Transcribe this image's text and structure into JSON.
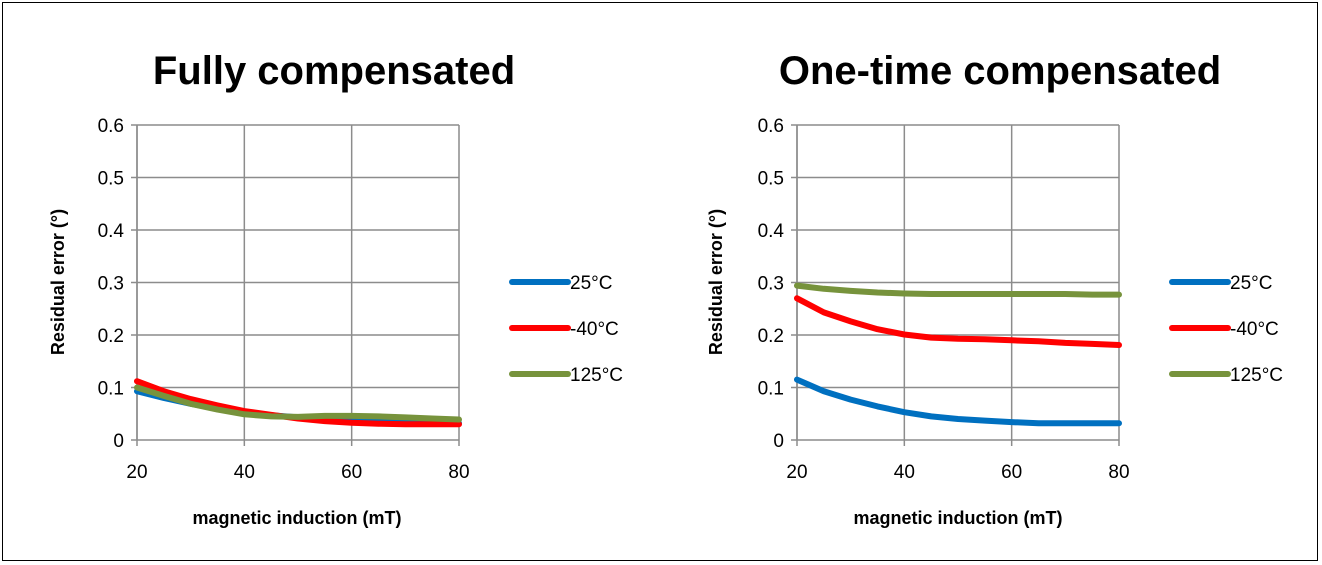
{
  "chart_data": [
    {
      "type": "line",
      "title": "Fully compensated",
      "xlabel": "magnetic induction (mT)",
      "ylabel": "Residual error (°)",
      "xlim": [
        20,
        80
      ],
      "ylim": [
        0,
        0.6
      ],
      "xticks": [
        20,
        40,
        60,
        80
      ],
      "yticks": [
        0,
        0.1,
        0.2,
        0.3,
        0.4,
        0.5,
        0.6
      ],
      "grid": true,
      "legend": "right",
      "series": [
        {
          "name": "25°C",
          "color": "#0070C0",
          "x": [
            20,
            25,
            30,
            35,
            40,
            45,
            50,
            55,
            60,
            65,
            70,
            75,
            80
          ],
          "y": [
            0.093,
            0.08,
            0.069,
            0.06,
            0.053,
            0.047,
            0.043,
            0.04,
            0.037,
            0.035,
            0.034,
            0.033,
            0.032
          ]
        },
        {
          "name": "-40°C",
          "color": "#FF0000",
          "x": [
            20,
            25,
            30,
            35,
            40,
            45,
            50,
            55,
            60,
            65,
            70,
            75,
            80
          ],
          "y": [
            0.112,
            0.093,
            0.078,
            0.066,
            0.055,
            0.048,
            0.041,
            0.036,
            0.033,
            0.031,
            0.03,
            0.03,
            0.03
          ]
        },
        {
          "name": "125°C",
          "color": "#77933C",
          "x": [
            20,
            25,
            30,
            35,
            40,
            45,
            50,
            55,
            60,
            65,
            70,
            75,
            80
          ],
          "y": [
            0.1,
            0.084,
            0.069,
            0.058,
            0.049,
            0.045,
            0.044,
            0.046,
            0.046,
            0.045,
            0.043,
            0.041,
            0.039
          ]
        }
      ]
    },
    {
      "type": "line",
      "title": "One-time compensated",
      "xlabel": "magnetic induction (mT)",
      "ylabel": "Residual error (°)",
      "xlim": [
        20,
        80
      ],
      "ylim": [
        0,
        0.6
      ],
      "xticks": [
        20,
        40,
        60,
        80
      ],
      "yticks": [
        0,
        0.1,
        0.2,
        0.3,
        0.4,
        0.5,
        0.6
      ],
      "grid": true,
      "legend": "right",
      "series": [
        {
          "name": "25°C",
          "color": "#0070C0",
          "x": [
            20,
            25,
            30,
            35,
            40,
            45,
            50,
            55,
            60,
            65,
            70,
            75,
            80
          ],
          "y": [
            0.115,
            0.093,
            0.077,
            0.064,
            0.053,
            0.045,
            0.04,
            0.037,
            0.034,
            0.032,
            0.032,
            0.032,
            0.032
          ]
        },
        {
          "name": "-40°C",
          "color": "#FF0000",
          "x": [
            20,
            25,
            30,
            35,
            40,
            45,
            50,
            55,
            60,
            65,
            70,
            75,
            80
          ],
          "y": [
            0.27,
            0.243,
            0.226,
            0.211,
            0.201,
            0.195,
            0.193,
            0.192,
            0.19,
            0.188,
            0.185,
            0.183,
            0.181
          ]
        },
        {
          "name": "125°C",
          "color": "#77933C",
          "x": [
            20,
            25,
            30,
            35,
            40,
            45,
            50,
            55,
            60,
            65,
            70,
            75,
            80
          ],
          "y": [
            0.294,
            0.288,
            0.284,
            0.281,
            0.279,
            0.278,
            0.278,
            0.278,
            0.278,
            0.278,
            0.278,
            0.277,
            0.277
          ]
        }
      ]
    }
  ]
}
